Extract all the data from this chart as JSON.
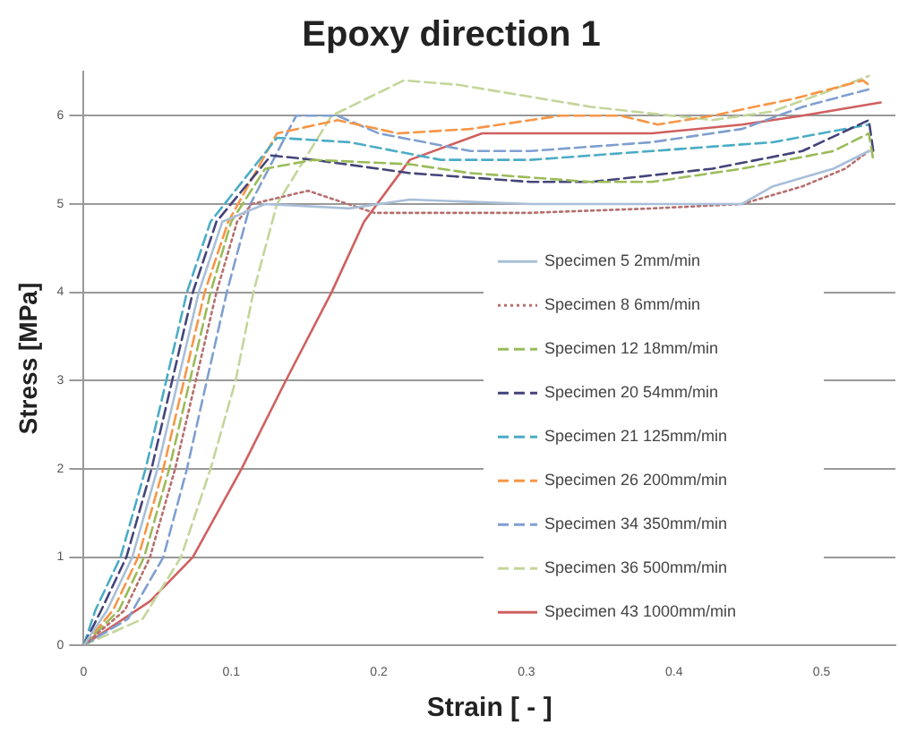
{
  "chart_data": {
    "type": "line",
    "title": "Epoxy direction 1",
    "xlabel": "Strain [ - ]",
    "ylabel": "Stress [MPa]",
    "xlim": [
      0,
      0.55
    ],
    "xticks": [
      0,
      0.1,
      0.2,
      0.3,
      0.4,
      0.5
    ],
    "ylim": [
      0,
      6.5
    ],
    "yticks": [
      0,
      1,
      2,
      3,
      4,
      5,
      6
    ],
    "grid": "y",
    "legend": "bottom right",
    "marker": "none",
    "series": [
      {
        "name": "Specimen 5 2mm/min",
        "color": "#a9bfd9",
        "line_style": "solid",
        "x": [
          0,
          0.016,
          0.033,
          0.05,
          0.064,
          0.078,
          0.094,
          0.123,
          0.18,
          0.221,
          0.303,
          0.385,
          0.446,
          0.467,
          0.508,
          0.532
        ],
        "values": [
          0,
          0.4,
          1,
          2,
          3,
          4,
          4.8,
          5,
          4.95,
          5.05,
          5,
          5,
          5,
          5.2,
          5.4,
          5.6
        ]
      },
      {
        "name": "Specimen 8 6mm/min",
        "color": "#b5706e",
        "line_style": "dotted",
        "x": [
          0,
          0.028,
          0.045,
          0.062,
          0.076,
          0.09,
          0.104,
          0.114,
          0.152,
          0.197,
          0.303,
          0.385,
          0.446,
          0.487,
          0.516,
          0.532
        ],
        "values": [
          0,
          0.4,
          1,
          2,
          3,
          4,
          4.8,
          5,
          5.15,
          4.9,
          4.9,
          4.95,
          5,
          5.2,
          5.4,
          5.6
        ]
      },
      {
        "name": "Specimen 12 18mm/min",
        "color": "#9bbb59",
        "line_style": "dashed",
        "x": [
          0,
          0.024,
          0.041,
          0.058,
          0.072,
          0.086,
          0.1,
          0.123,
          0.156,
          0.221,
          0.262,
          0.344,
          0.385,
          0.446,
          0.508,
          0.532,
          0.535
        ],
        "values": [
          0,
          0.4,
          1,
          2,
          3,
          4,
          4.8,
          5.4,
          5.5,
          5.45,
          5.35,
          5.25,
          5.25,
          5.4,
          5.6,
          5.8,
          5.5
        ]
      },
      {
        "name": "Specimen 20 54mm/min",
        "color": "#44447a",
        "line_style": "dashed",
        "x": [
          0,
          0.012,
          0.029,
          0.046,
          0.06,
          0.074,
          0.09,
          0.127,
          0.156,
          0.221,
          0.303,
          0.344,
          0.426,
          0.487,
          0.532,
          0.535
        ],
        "values": [
          0,
          0.4,
          1,
          2,
          3,
          4,
          4.8,
          5.55,
          5.5,
          5.35,
          5.25,
          5.25,
          5.4,
          5.6,
          5.95,
          5.6
        ]
      },
      {
        "name": "Specimen 21 125mm/min",
        "color": "#4bacc6",
        "line_style": "dashed",
        "x": [
          0,
          0.008,
          0.025,
          0.042,
          0.056,
          0.07,
          0.086,
          0.131,
          0.18,
          0.242,
          0.303,
          0.385,
          0.467,
          0.532
        ],
        "values": [
          0,
          0.4,
          1,
          2,
          3,
          4,
          4.8,
          5.75,
          5.7,
          5.5,
          5.5,
          5.6,
          5.7,
          5.9
        ]
      },
      {
        "name": "Specimen 26 200mm/min",
        "color": "#f79646",
        "line_style": "dashed",
        "x": [
          0,
          0.02,
          0.037,
          0.054,
          0.068,
          0.082,
          0.098,
          0.131,
          0.172,
          0.213,
          0.262,
          0.323,
          0.364,
          0.389,
          0.426,
          0.483,
          0.528,
          0.532
        ],
        "values": [
          0,
          0.4,
          1,
          2,
          3,
          4,
          4.8,
          5.8,
          5.95,
          5.8,
          5.85,
          6,
          6,
          5.9,
          6,
          6.2,
          6.4,
          6.35
        ]
      },
      {
        "name": "Specimen 34 350mm/min",
        "color": "#7f9fd0",
        "line_style": "dashed",
        "x": [
          0,
          0.03,
          0.054,
          0.07,
          0.097,
          0.113,
          0.144,
          0.172,
          0.2,
          0.262,
          0.303,
          0.385,
          0.446,
          0.487,
          0.532
        ],
        "values": [
          0,
          0.3,
          1,
          2,
          4,
          5,
          6,
          6,
          5.8,
          5.6,
          5.6,
          5.7,
          5.85,
          6.1,
          6.3
        ]
      },
      {
        "name": "Specimen 36 500mm/min",
        "color": "#c3d69b",
        "line_style": "dashed",
        "x": [
          0,
          0.04,
          0.066,
          0.086,
          0.103,
          0.115,
          0.131,
          0.168,
          0.217,
          0.254,
          0.344,
          0.426,
          0.467,
          0.508,
          0.532
        ],
        "values": [
          0,
          0.3,
          1,
          2,
          3,
          4,
          5,
          6,
          6.4,
          6.35,
          6.1,
          5.95,
          6.05,
          6.3,
          6.45
        ]
      },
      {
        "name": "Specimen 43 1000mm/min",
        "color": "#d06060",
        "line_style": "solid",
        "x": [
          0,
          0.045,
          0.074,
          0.107,
          0.137,
          0.168,
          0.19,
          0.221,
          0.27,
          0.385,
          0.446,
          0.487,
          0.54
        ],
        "values": [
          0,
          0.5,
          1,
          2,
          3,
          4,
          4.8,
          5.5,
          5.8,
          5.8,
          5.9,
          6,
          6.15
        ]
      }
    ]
  }
}
